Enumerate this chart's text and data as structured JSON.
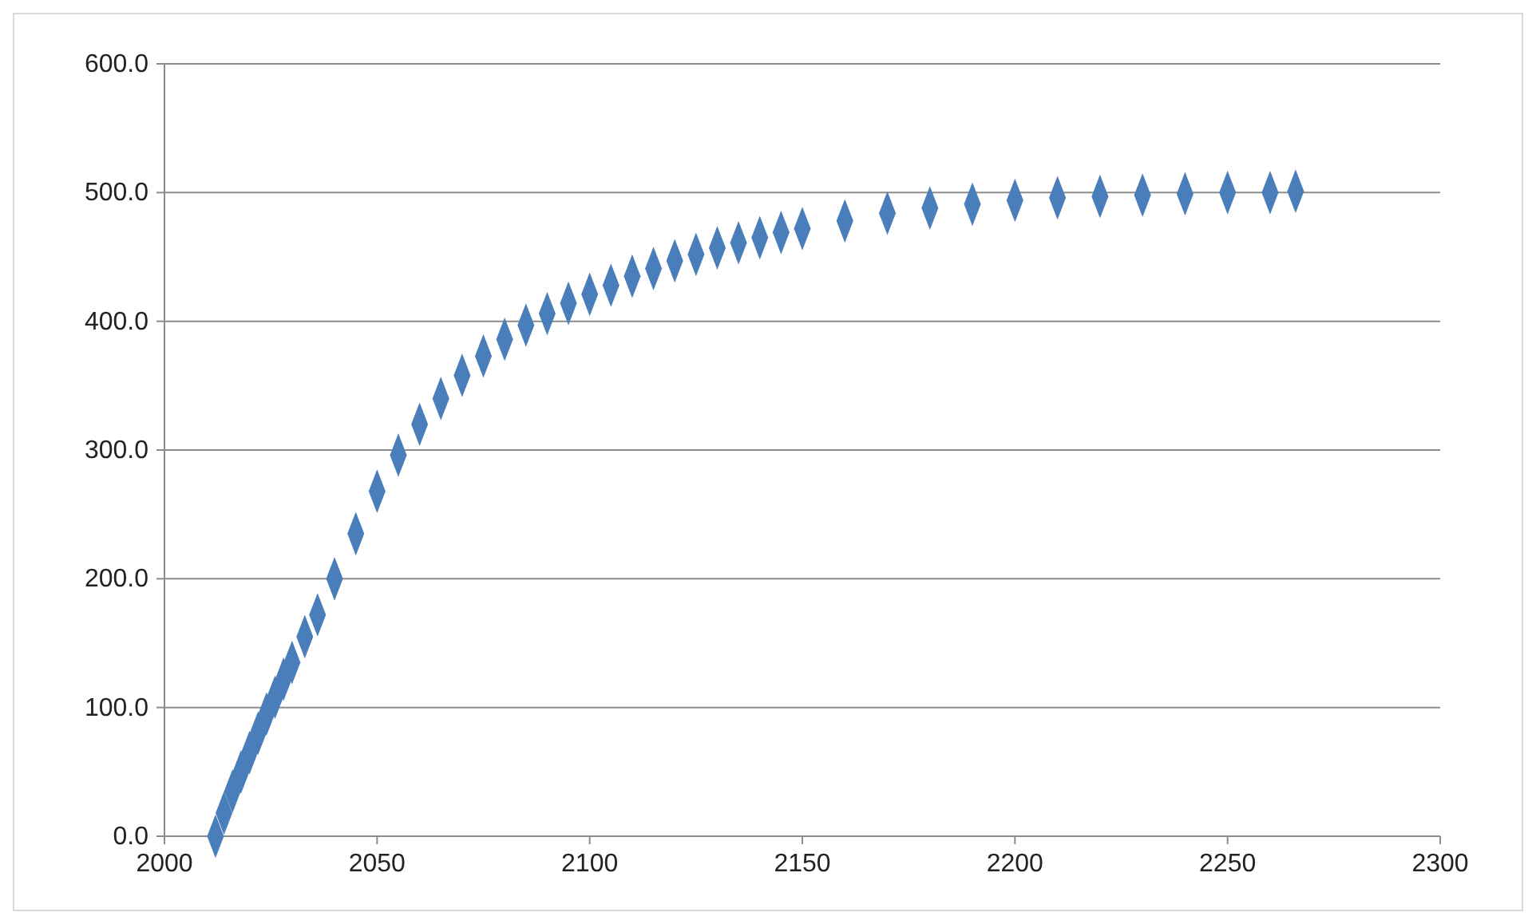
{
  "chart_data": {
    "type": "scatter",
    "marker": "diamond",
    "grid": "y",
    "xlim": [
      2000,
      2300
    ],
    "xticks": [
      2000,
      2050,
      2100,
      2150,
      2200,
      2250,
      2300
    ],
    "ylim": [
      0,
      600
    ],
    "yticks": [
      {
        "value": 0,
        "label": "0.0"
      },
      {
        "value": 100,
        "label": "100.0"
      },
      {
        "value": 200,
        "label": "200.0"
      },
      {
        "value": 300,
        "label": "300.0"
      },
      {
        "value": 400,
        "label": "400.0"
      },
      {
        "value": 500,
        "label": "500.0"
      },
      {
        "value": 600,
        "label": "600.0"
      }
    ],
    "series": [
      {
        "color": "#4a7ebb",
        "x": [
          2012,
          2014,
          2016,
          2018,
          2020,
          2022,
          2024,
          2026,
          2028,
          2030,
          2033,
          2036,
          2040,
          2045,
          2050,
          2055,
          2060,
          2065,
          2070,
          2075,
          2080,
          2085,
          2090,
          2095,
          2100,
          2105,
          2110,
          2115,
          2120,
          2125,
          2130,
          2135,
          2140,
          2145,
          2150,
          2160,
          2170,
          2180,
          2190,
          2200,
          2210,
          2220,
          2230,
          2240,
          2250,
          2260,
          2266
        ],
        "values": [
          0,
          18,
          35,
          50,
          65,
          80,
          95,
          108,
          122,
          135,
          155,
          172,
          200,
          235,
          268,
          296,
          320,
          340,
          358,
          373,
          386,
          397,
          406,
          414,
          421,
          428,
          435,
          441,
          447,
          452,
          457,
          461,
          465,
          469,
          472,
          478,
          484,
          488,
          491,
          494,
          496,
          497,
          498,
          499,
          500,
          500,
          501
        ]
      }
    ]
  }
}
